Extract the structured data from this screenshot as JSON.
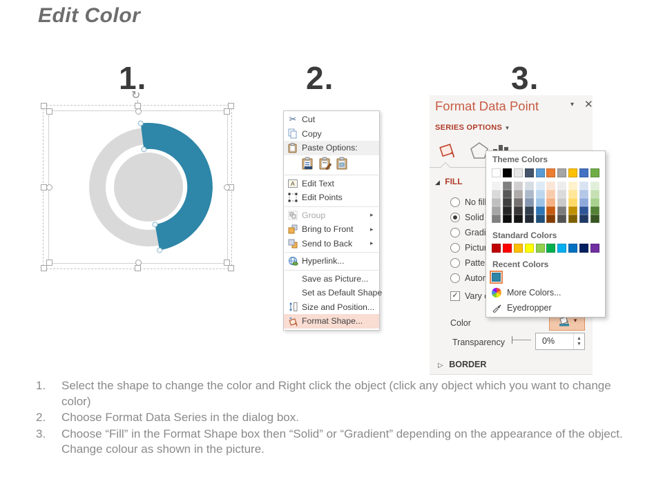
{
  "slide": {
    "title": "Edit Color"
  },
  "steps": [
    {
      "number": "1."
    },
    {
      "number": "2."
    },
    {
      "number": "3."
    }
  ],
  "shape": {
    "donut_color": "#D9D9D9",
    "ring_hole_color": "#FFFFFF",
    "arc_color": "#2E86A8"
  },
  "context_menu": {
    "items": {
      "cut": {
        "label": "Cut",
        "icon": "scissors-icon"
      },
      "copy": {
        "label": "Copy",
        "icon": "copy-icon"
      },
      "paste_options": {
        "label": "Paste Options:",
        "icon": "clipboard-icon"
      },
      "edit_text": {
        "label": "Edit Text",
        "icon": "edit-text-icon"
      },
      "edit_points": {
        "label": "Edit Points",
        "icon": "edit-points-icon"
      },
      "group": {
        "label": "Group",
        "icon": "group-icon",
        "disabled": true
      },
      "bring_to_front": {
        "label": "Bring to Front",
        "icon": "bring-front-icon"
      },
      "send_to_back": {
        "label": "Send to Back",
        "icon": "send-back-icon"
      },
      "hyperlink": {
        "label": "Hyperlink...",
        "icon": "hyperlink-icon"
      },
      "save_as_picture": {
        "label": "Save as Picture..."
      },
      "set_as_default_shape": {
        "label": "Set as Default Shape"
      },
      "size_and_position": {
        "label": "Size and Position...",
        "icon": "size-position-icon"
      },
      "format_shape": {
        "label": "Format Shape...",
        "icon": "format-shape-icon",
        "highlighted": true
      }
    },
    "submenu_arrow": "▸"
  },
  "format_panel": {
    "title": "Format Data Point",
    "minimize_glyph": "▾",
    "close_glyph": "✕",
    "section_label": "SERIES OPTIONS",
    "section_arrow": "▼",
    "fill_header": "FILL",
    "fill_expand_glyph": "◢",
    "border_header": "BORDER",
    "border_expand_glyph": "▷",
    "options": {
      "no_fill": "No fill",
      "solid_fill": "Solid fill",
      "gradient_fill": "Gradient fill",
      "picture_fill": "Picture or texture fill",
      "pattern_fill": "Pattern fill",
      "automatic": "Automatic",
      "vary_colors": "Vary colors by point",
      "selected_option": "Solid fill"
    },
    "color_label": "Color",
    "color_button_dropdown": "▾",
    "transparency_label": "Transparency",
    "transparency_value": "0%",
    "accent_color": "#C75B44",
    "section_red": "#B13A2A",
    "highlight_color": "#F3C7A9"
  },
  "theme_popup": {
    "theme_title": "Theme Colors",
    "standard_title": "Standard Colors",
    "recent_title": "Recent Colors",
    "more_colors_label": "More Colors...",
    "eyedropper_label": "Eyedropper",
    "theme_row": [
      "#FFFFFF",
      "#000000",
      "#E7E6E6",
      "#44546A",
      "#5B9BD5",
      "#ED7D31",
      "#A5A5A5",
      "#FFC000",
      "#4472C4",
      "#70AD47"
    ],
    "variant_columns": [
      [
        "#F2F2F2",
        "#D9D9D9",
        "#BFBFBF",
        "#A6A6A6",
        "#808080"
      ],
      [
        "#808080",
        "#595959",
        "#404040",
        "#262626",
        "#0D0D0D"
      ],
      [
        "#D0CECE",
        "#AEAAAA",
        "#757171",
        "#3A3838",
        "#171616"
      ],
      [
        "#D6DCE4",
        "#ACB9CA",
        "#8496B0",
        "#333F4F",
        "#222A35"
      ],
      [
        "#DEEBF7",
        "#BDD7EE",
        "#9DC3E6",
        "#2E75B6",
        "#1F4E79"
      ],
      [
        "#FBE5D6",
        "#F8CBAD",
        "#F4B183",
        "#C55A11",
        "#833C00"
      ],
      [
        "#EDEDED",
        "#DBDBDB",
        "#C9C9C9",
        "#7B7B7B",
        "#525252"
      ],
      [
        "#FFF2CC",
        "#FFE699",
        "#FFD966",
        "#BF9000",
        "#7F6000"
      ],
      [
        "#DAE3F3",
        "#B4C7E7",
        "#8EAADB",
        "#2F5597",
        "#1F3864"
      ],
      [
        "#E2EFDA",
        "#C6E0B4",
        "#A9D18E",
        "#548235",
        "#375623"
      ]
    ],
    "standard_row": [
      "#C00000",
      "#FF0000",
      "#FFC000",
      "#FFFF00",
      "#92D050",
      "#00B050",
      "#00B0F0",
      "#0070C0",
      "#002060",
      "#7030A0"
    ],
    "recent_row": [
      "#2E86A8"
    ]
  },
  "instructions": [
    {
      "num": "1.",
      "text": "Select the shape to change the color and Right click the object (click any object which you want to change color)"
    },
    {
      "num": "2.",
      "text": "Choose Format Data Series in the dialog box."
    },
    {
      "num": "3.",
      "text": "Choose “Fill” in the Format Shape box then “Solid” or “Gradient” depending on the appearance of the object. Change colour as shown in the picture."
    }
  ]
}
